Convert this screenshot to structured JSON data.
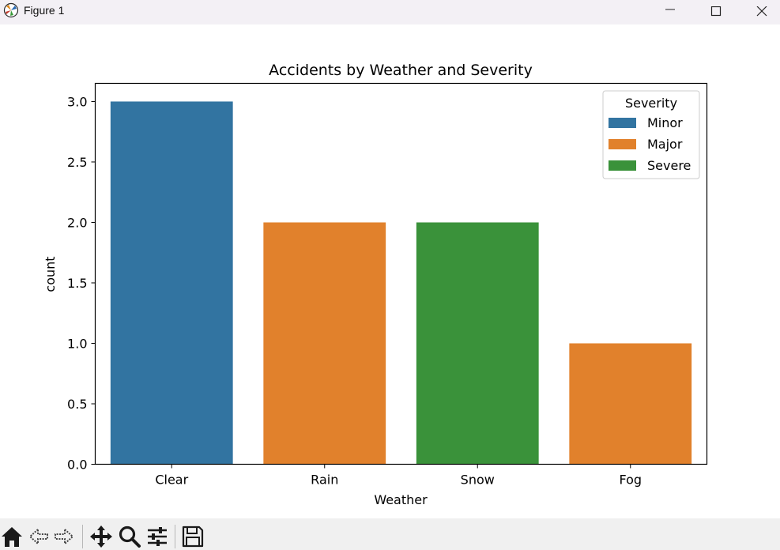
{
  "window": {
    "title": "Figure 1",
    "minimize_icon": "minimize-icon",
    "maximize_icon": "maximize-icon",
    "close_icon": "close-icon"
  },
  "toolbar": {
    "icons": [
      "home-icon",
      "back-icon",
      "forward-icon",
      "pan-icon",
      "zoom-icon",
      "configure-subplots-icon",
      "save-icon"
    ]
  },
  "chart_data": {
    "type": "bar",
    "title": "Accidents by Weather and Severity",
    "xlabel": "Weather",
    "ylabel": "count",
    "categories": [
      "Clear",
      "Rain",
      "Snow",
      "Fog"
    ],
    "values": [
      3,
      2,
      2,
      1
    ],
    "bar_series": [
      "Minor",
      "Major",
      "Severe",
      "Major"
    ],
    "series": [
      {
        "name": "Minor",
        "color": "#3274a1"
      },
      {
        "name": "Major",
        "color": "#e1812c"
      },
      {
        "name": "Severe",
        "color": "#3a923a"
      }
    ],
    "ylim": [
      0,
      3.15
    ],
    "yticks": [
      "0.0",
      "0.5",
      "1.0",
      "1.5",
      "2.0",
      "2.5",
      "3.0"
    ],
    "ytick_values": [
      0,
      0.5,
      1.0,
      1.5,
      2.0,
      2.5,
      3.0
    ],
    "legend_title": "Severity",
    "legend_position": "top-right",
    "grid": false
  }
}
